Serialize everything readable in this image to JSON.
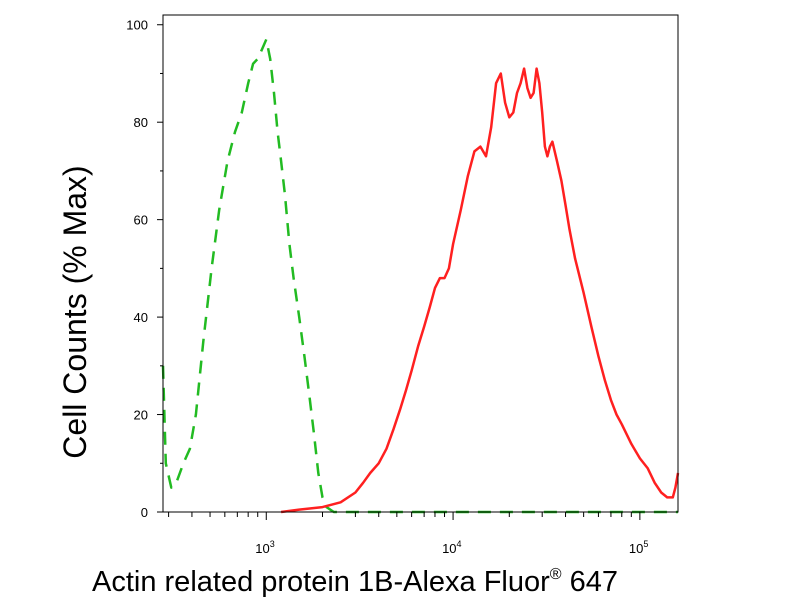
{
  "chart_data": {
    "type": "line",
    "xscale": "log",
    "xlabel": "Actin related protein 1B-Alexa Fluor",
    "xlabel_superscript": "®",
    "xlabel_suffix": " 647",
    "ylabel": "Cell Counts (% Max)",
    "xlim": [
      280,
      160000
    ],
    "ylim": [
      0,
      102
    ],
    "xticks": [
      {
        "value": 1000,
        "base": "10",
        "exp": "3"
      },
      {
        "value": 10000,
        "base": "10",
        "exp": "4"
      },
      {
        "value": 100000,
        "base": "10",
        "exp": "5"
      }
    ],
    "yticks": [
      0,
      20,
      40,
      60,
      80,
      100
    ],
    "grid": false,
    "legend": "none",
    "series": [
      {
        "style": "dashed",
        "color": "#22bb22",
        "x": [
          280,
          290,
          310,
          330,
          360,
          390,
          420,
          460,
          510,
          560,
          620,
          680,
          740,
          800,
          850,
          900,
          950,
          1000,
          1050,
          1100,
          1150,
          1200,
          1260,
          1330,
          1400,
          1500,
          1600,
          1700,
          1800,
          1900,
          2000,
          2100,
          2300,
          2600,
          3000,
          4000,
          6000,
          10000,
          20000,
          40000,
          80000,
          160000
        ],
        "y": [
          30,
          10,
          5,
          6,
          10,
          13,
          20,
          35,
          50,
          62,
          72,
          78,
          82,
          88,
          92,
          93,
          95,
          97,
          93,
          86,
          78,
          72,
          65,
          55,
          48,
          40,
          32,
          24,
          16,
          8,
          3,
          1,
          0,
          0,
          0,
          0,
          0,
          0,
          0,
          0,
          0,
          0
        ]
      },
      {
        "style": "solid",
        "color": "#ff2020",
        "x": [
          1200,
          1500,
          2000,
          2500,
          3000,
          3300,
          3600,
          4000,
          4400,
          4800,
          5200,
          5600,
          6000,
          6500,
          7000,
          7500,
          8000,
          8500,
          9000,
          9500,
          10000,
          11000,
          12000,
          13000,
          14000,
          15000,
          16000,
          17000,
          18000,
          19000,
          20000,
          21000,
          22000,
          23000,
          24000,
          25000,
          26000,
          27000,
          28000,
          29000,
          30000,
          31000,
          32000,
          33000,
          34000,
          36000,
          38000,
          40000,
          42000,
          45000,
          50000,
          55000,
          60000,
          65000,
          70000,
          75000,
          80000,
          90000,
          100000,
          110000,
          120000,
          130000,
          140000,
          150000,
          155000,
          160000
        ],
        "y": [
          0,
          0.5,
          1,
          2,
          4,
          6,
          8,
          10,
          13,
          17,
          21,
          25,
          29,
          34,
          38,
          42,
          46,
          48,
          48,
          50,
          55,
          62,
          69,
          74,
          75,
          73,
          79,
          88,
          90,
          84,
          81,
          82,
          86,
          88,
          91,
          87,
          85,
          86,
          91,
          88,
          82,
          75,
          73,
          75,
          76,
          72,
          68,
          63,
          58,
          52,
          45,
          38,
          32,
          27,
          23,
          20,
          18,
          14,
          11,
          9,
          6,
          4,
          3,
          3,
          5,
          8
        ]
      }
    ]
  }
}
